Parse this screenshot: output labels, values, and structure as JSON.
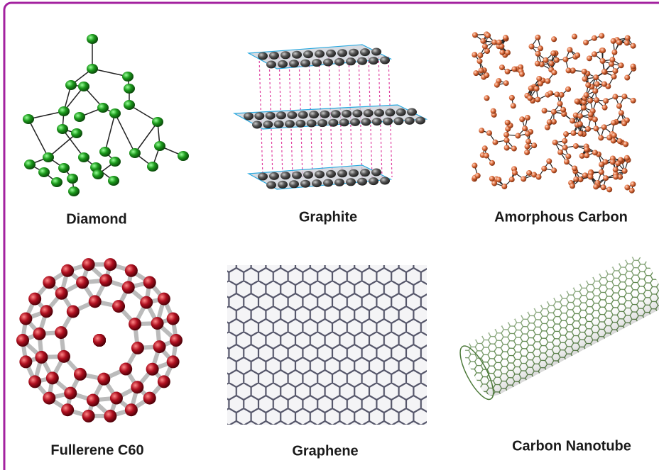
{
  "items": [
    {
      "label": "Diamond"
    },
    {
      "label": "Graphite"
    },
    {
      "label": "Amorphous Carbon"
    },
    {
      "label": "Fullerene C60"
    },
    {
      "label": "Graphene"
    },
    {
      "label": "Carbon Nanotube"
    }
  ]
}
